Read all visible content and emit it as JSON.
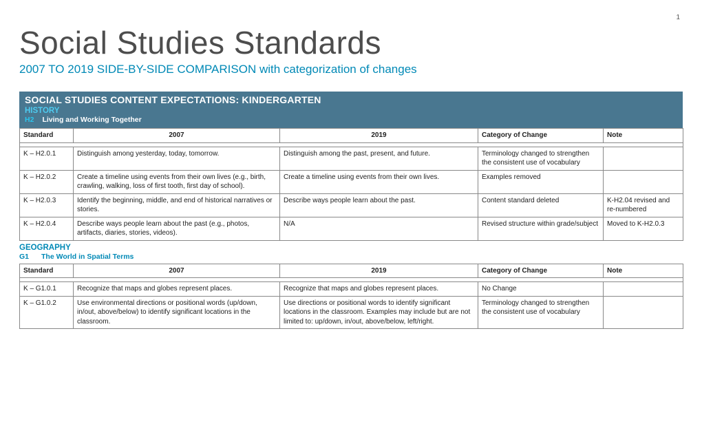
{
  "page_number": "1",
  "title": "Social Studies Standards",
  "subtitle": "2007 TO 2019 SIDE-BY-SIDE COMPARISON with categorization of changes",
  "banner": {
    "heading": "SOCIAL STUDIES CONTENT EXPECTATIONS: KINDERGARTEN",
    "subject": "HISTORY",
    "strand_code": "H2",
    "strand_name": "Living and Working Together"
  },
  "columns": {
    "standard": "Standard",
    "y2007": "2007",
    "y2019": "2019",
    "category": "Category of Change",
    "note": "Note"
  },
  "history_rows": [
    {
      "standard": "K – H2.0.1",
      "y2007": "Distinguish among yesterday, today, tomorrow.",
      "y2019": "Distinguish among the past, present, and future.",
      "category": "Terminology changed to strengthen the consistent use of vocabulary",
      "note": ""
    },
    {
      "standard": "K – H2.0.2",
      "y2007": "Create a timeline using events from their own lives (e.g., birth, crawling, walking, loss of first tooth, first day of school).",
      "y2019": "Create a timeline using events from their own lives.",
      "category": "Examples removed",
      "note": ""
    },
    {
      "standard": "K – H2.0.3",
      "y2007": "Identify the beginning, middle, and end of historical narratives or stories.",
      "y2019": "Describe ways people learn about the past.",
      "category": "Content standard deleted",
      "note": "K-H2.04 revised and re-numbered"
    },
    {
      "standard": "K – H2.0.4",
      "y2007": "Describe ways people learn about the past (e.g., photos, artifacts, diaries, stories, videos).",
      "y2019": "N/A",
      "category": "Revised structure within grade/subject",
      "note": "Moved to K-H2.0.3"
    }
  ],
  "geography": {
    "subject": "GEOGRAPHY",
    "strand_code": "G1",
    "strand_name": "The World in Spatial Terms"
  },
  "geography_rows": [
    {
      "standard": "K – G1.0.1",
      "y2007": "Recognize that maps and globes represent places.",
      "y2019": "Recognize that maps and globes represent places.",
      "category": "No Change",
      "note": ""
    },
    {
      "standard": "K – G1.0.2",
      "y2007": "Use environmental directions or positional words (up/down, in/out, above/below) to identify significant locations in the classroom.",
      "y2019": "Use directions or positional words to identify significant locations in the classroom. Examples may include but are not limited to: up/down, in/out, above/below, left/right.",
      "category": "Terminology changed to strengthen the consistent use of vocabulary",
      "note": ""
    }
  ],
  "colors": {
    "banner_bg": "#497790",
    "accent": "#0089b6",
    "cyan": "#2cc4ec"
  }
}
